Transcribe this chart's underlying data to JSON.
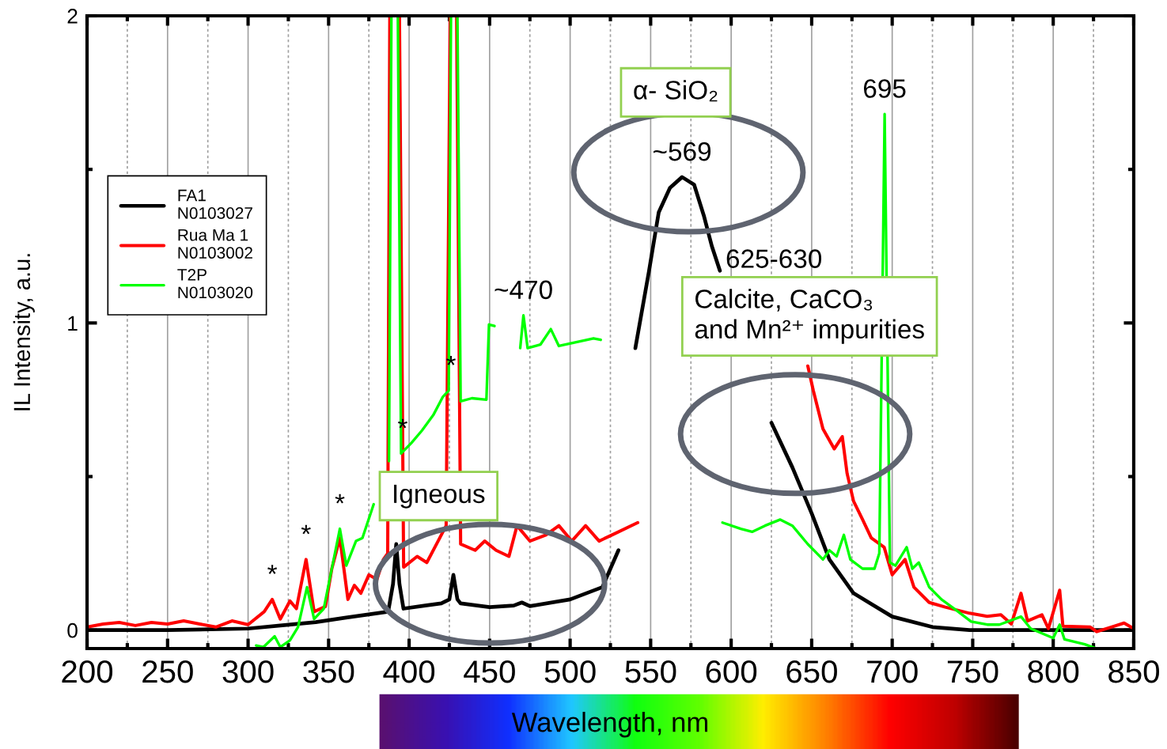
{
  "chart_data": {
    "type": "line",
    "xlabel": "Wavelength, nm",
    "ylabel": "IL Intensity, a.u.",
    "xlim": [
      200,
      850
    ],
    "ylim": [
      -0.06,
      2
    ],
    "xticks": [
      200,
      {
        "value": 225,
        "label": null
      },
      250,
      {
        "value": 275,
        "label": null
      },
      300,
      {
        "value": 325,
        "label": null
      },
      350,
      {
        "value": 375,
        "label": null
      },
      400,
      {
        "value": 425,
        "label": null
      },
      450,
      {
        "value": 475,
        "label": null
      },
      500,
      {
        "value": 525,
        "label": null
      },
      550,
      {
        "value": 575,
        "label": null
      },
      600,
      {
        "value": 625,
        "label": null
      },
      650,
      {
        "value": 675,
        "label": null
      },
      700,
      {
        "value": 725,
        "label": null
      },
      750,
      {
        "value": 775,
        "label": null
      },
      800,
      {
        "value": 825,
        "label": null
      },
      850
    ],
    "yticks": [
      0,
      {
        "value": 0.5,
        "label": null
      },
      1,
      {
        "value": 1.5,
        "label": null
      },
      2
    ],
    "grid": "x",
    "legend": "top left",
    "series": [
      {
        "name": "FA1\nN0103027",
        "color": "#000000",
        "x": [
          200,
          250,
          300,
          320,
          342,
          360,
          387,
          390,
          392,
          394,
          396.5,
          410,
          420,
          425,
          427.5,
          430,
          432,
          450,
          465,
          470,
          475,
          500,
          520,
          530,
          535,
          540.5,
          549,
          555,
          562,
          569.5,
          577,
          583,
          588,
          593,
          610,
          625,
          638,
          650,
          661,
          676,
          700,
          725,
          748,
          800,
          850
        ],
        "values": [
          0,
          0,
          0.005,
          0.015,
          0.026,
          0.04,
          0.06,
          0.15,
          0.28,
          0.15,
          0.07,
          0.08,
          0.087,
          0.1,
          0.18,
          0.1,
          0.087,
          0.075,
          0.08,
          0.09,
          0.078,
          0.1,
          0.14,
          0.26,
          null,
          0.918,
          1.17,
          1.36,
          1.44,
          1.475,
          1.45,
          1.35,
          1.25,
          1.17,
          null,
          0.675,
          0.53,
          0.38,
          0.23,
          0.12,
          0.044,
          0.01,
          0,
          0,
          0
        ]
      },
      {
        "name": "Rua Ma 1\nN0103002",
        "color": "#ff0000",
        "x": [
          200,
          210,
          220,
          230,
          240,
          250,
          260,
          270,
          280,
          290,
          300,
          310,
          315,
          320,
          326,
          330,
          336,
          341,
          348,
          352,
          357,
          362,
          366,
          370,
          375,
          380,
          384,
          386.7,
          388,
          394,
          396.6,
          405,
          411,
          418,
          423,
          425.5,
          429.5,
          432,
          441,
          447,
          454,
          462,
          467,
          475,
          485,
          493,
          501,
          509.6,
          518,
          526,
          542,
          600,
          647.6,
          651,
          657,
          664,
          669,
          672,
          676,
          681.6,
          687,
          695,
          700,
          708,
          713.5,
          723,
          733,
          748,
          759,
          767.5,
          774,
          780,
          784,
          793,
          797,
          804,
          806,
          823,
          827,
          838,
          844,
          850
        ],
        "values": [
          0.01,
          0.02,
          0.025,
          0.015,
          0.025,
          0.02,
          0.03,
          0.02,
          0.01,
          0.03,
          0.018,
          0.06,
          0.1,
          0.036,
          0.095,
          0.07,
          0.23,
          0.06,
          0.077,
          0.2,
          0.3,
          0.1,
          0.146,
          0.12,
          0.18,
          0.165,
          0.23,
          0.25,
          2,
          2,
          0.205,
          0.24,
          0.22,
          0.29,
          0.34,
          2,
          2,
          0.28,
          0.26,
          0.29,
          0.26,
          0.24,
          0.34,
          0.29,
          0.31,
          0.34,
          0.29,
          0.34,
          0.29,
          0.31,
          0.35,
          null,
          0.86,
          0.78,
          0.655,
          0.59,
          0.63,
          0.51,
          0.42,
          0.36,
          0.3,
          0.27,
          0.18,
          0.23,
          0.14,
          0.09,
          0.075,
          0.055,
          0.045,
          0.05,
          0.02,
          0.12,
          0.03,
          0.05,
          0.005,
          0.13,
          0.013,
          0.01,
          -0.005,
          0.013,
          0.023,
          0.005
        ]
      },
      {
        "name": "T2P\nN0103020",
        "color": "#00ff00",
        "x": [
          305,
          309.6,
          316.5,
          320,
          326,
          331,
          336.6,
          341,
          347,
          352,
          357,
          361,
          367,
          371,
          378,
          383,
          387.5,
          389,
          393,
          395,
          401.5,
          408,
          415,
          421,
          424.6,
          426,
          430,
          432,
          439,
          448,
          449.6,
          453,
          460,
          469,
          471,
          473.6,
          481.6,
          488,
          493,
          514.5,
          519,
          560,
          594.6,
          606,
          613,
          621,
          630.5,
          638,
          647.6,
          657,
          661,
          665.5,
          670,
          674,
          681.6,
          689,
          692,
          695.3,
          698.6,
          702,
          709,
          712.5,
          716.5,
          723,
          730.6,
          740,
          749,
          759,
          766.6,
          780,
          786,
          800,
          804,
          807,
          819.6,
          827
        ],
        "values": [
          -0.05,
          -0.055,
          -0.02,
          -0.055,
          -0.033,
          0.01,
          0.14,
          0.036,
          0.07,
          0.2,
          0.33,
          0.21,
          0.29,
          0.3,
          0.41,
          null,
          0.55,
          2,
          2,
          0.575,
          0.61,
          0.65,
          0.7,
          0.76,
          0.78,
          2,
          2,
          0.745,
          0.755,
          0.75,
          0.995,
          0.99,
          null,
          0.918,
          1.025,
          0.918,
          0.93,
          0.98,
          0.925,
          0.95,
          0.945,
          null,
          0.35,
          0.33,
          0.32,
          0.34,
          0.36,
          0.34,
          0.28,
          0.23,
          0.26,
          0.24,
          0.31,
          0.23,
          0.2,
          0.2,
          0.25,
          1.68,
          0.22,
          0.21,
          0.27,
          0.2,
          0.22,
          0.14,
          0.1,
          0.064,
          0.028,
          0.018,
          0.018,
          0.044,
          0.005,
          -0.026,
          0.018,
          -0.03,
          -0.046,
          -0.06
        ]
      }
    ],
    "annotations": [
      "α- SiO₂",
      "Calcite, CaCO₃\nand Mn²⁺ impurities",
      "Igneous",
      {
        "text": "~569",
        "x": 569.5,
        "y": 1.475
      },
      {
        "text": "695",
        "x": 695.3,
        "y": 1.68
      },
      "625-630",
      {
        "text": "~470",
        "x": 471,
        "y": 1.025
      },
      {
        "text": "*",
        "x": 315,
        "y": 0.1
      },
      {
        "text": "*",
        "x": 336,
        "y": 0.23
      },
      {
        "text": "*",
        "x": 357,
        "y": 0.33
      },
      {
        "text": "*",
        "x": 396,
        "y": 0.575
      },
      {
        "text": "*",
        "x": 426,
        "y": 0.78
      }
    ]
  }
}
